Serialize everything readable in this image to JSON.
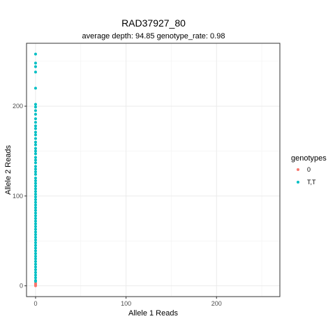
{
  "chart_data": {
    "type": "scatter",
    "title": "RAD37927_80",
    "subtitle": "average depth:  94.85  genotype_rate:  0.98",
    "xlabel": "Allele 1 Reads",
    "ylabel": "Allele 2 Reads",
    "xlim": [
      -10,
      270
    ],
    "ylim": [
      -12,
      270
    ],
    "x_ticks": [
      0,
      100,
      200
    ],
    "y_ticks": [
      0,
      100,
      200
    ],
    "grid": true,
    "legend_title": "genotypes",
    "legend_position": "right",
    "series": [
      {
        "name": "0",
        "color": "#F8766D",
        "points": [
          [
            0,
            0
          ],
          [
            0,
            1
          ],
          [
            0,
            2
          ],
          [
            0,
            3
          ]
        ]
      },
      {
        "name": "T,T",
        "color": "#00BFC4",
        "points": [
          [
            0,
            258
          ],
          [
            0,
            248
          ],
          [
            0,
            244
          ],
          [
            0,
            238
          ],
          [
            0,
            220
          ],
          [
            0,
            202
          ],
          [
            0,
            199
          ],
          [
            0,
            195
          ],
          [
            0,
            191
          ],
          [
            0,
            186
          ],
          [
            0,
            182
          ],
          [
            0,
            178
          ],
          [
            0,
            175
          ],
          [
            0,
            171
          ],
          [
            0,
            168
          ],
          [
            0,
            164
          ],
          [
            0,
            160
          ],
          [
            0,
            157
          ],
          [
            0,
            153
          ],
          [
            0,
            150
          ],
          [
            0,
            147
          ],
          [
            0,
            143
          ],
          [
            0,
            140
          ],
          [
            0,
            137
          ],
          [
            0,
            133
          ],
          [
            0,
            130
          ],
          [
            0,
            127
          ],
          [
            0,
            124
          ],
          [
            0,
            120
          ],
          [
            0,
            117
          ],
          [
            0,
            114
          ],
          [
            0,
            111
          ],
          [
            0,
            108
          ],
          [
            0,
            105
          ],
          [
            0,
            102
          ],
          [
            0,
            99
          ],
          [
            0,
            96
          ],
          [
            0,
            93
          ],
          [
            0,
            90
          ],
          [
            0,
            87
          ],
          [
            0,
            84
          ],
          [
            0,
            81
          ],
          [
            0,
            78
          ],
          [
            0,
            75
          ],
          [
            0,
            72
          ],
          [
            0,
            69
          ],
          [
            0,
            66
          ],
          [
            0,
            63
          ],
          [
            0,
            60
          ],
          [
            0,
            57
          ],
          [
            0,
            54
          ],
          [
            0,
            51
          ],
          [
            0,
            48
          ],
          [
            0,
            45
          ],
          [
            0,
            42
          ],
          [
            0,
            39
          ],
          [
            0,
            36
          ],
          [
            0,
            33
          ],
          [
            0,
            30
          ],
          [
            0,
            27
          ],
          [
            0,
            24
          ],
          [
            0,
            21
          ],
          [
            0,
            18
          ],
          [
            0,
            15
          ],
          [
            0,
            12
          ],
          [
            0,
            9
          ],
          [
            0,
            6
          ],
          [
            0,
            5
          ]
        ]
      }
    ]
  }
}
